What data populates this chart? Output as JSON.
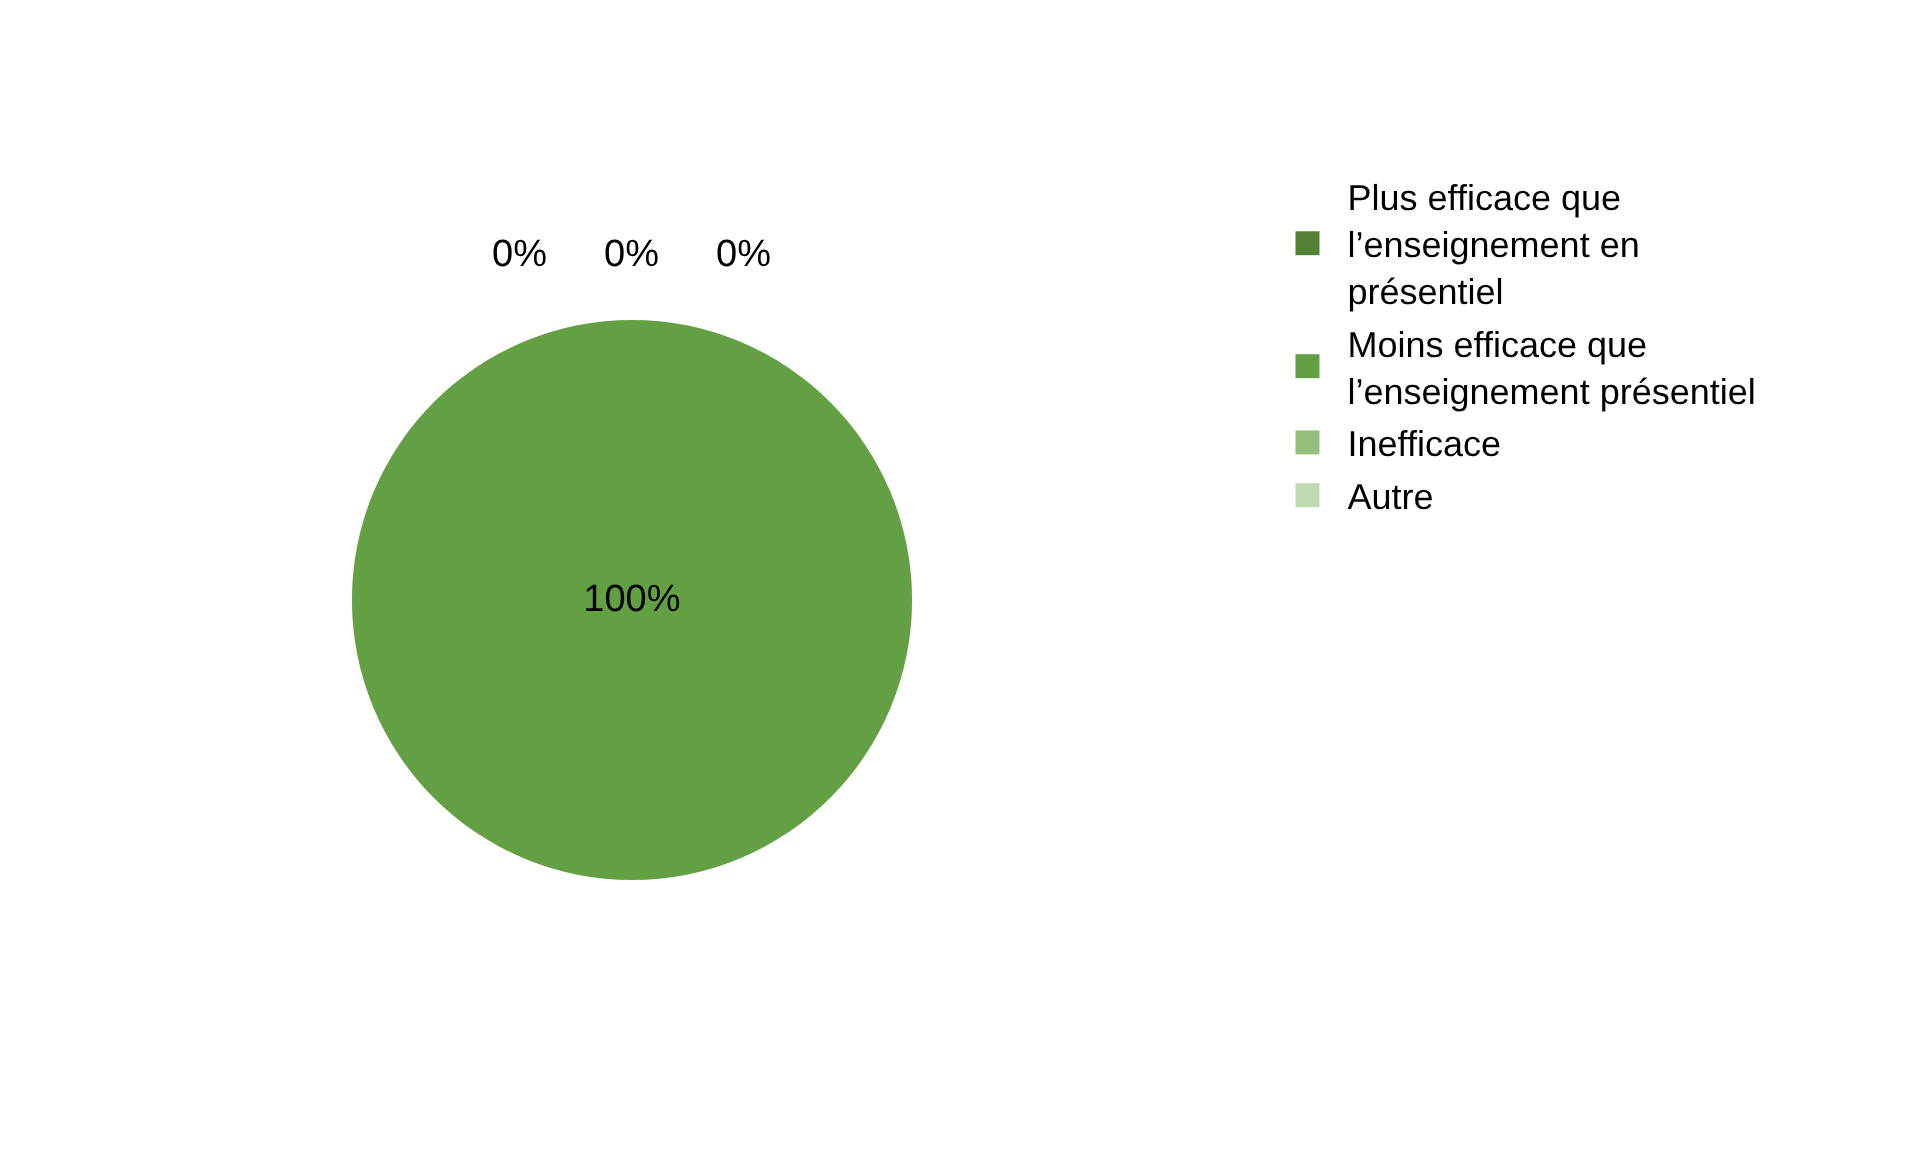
{
  "chart_data": {
    "type": "pie",
    "categories": [
      "Plus efficace que l’enseignement en présentiel",
      "Moins efficace que l’enseignement présentiel",
      "Inefficace",
      "Autre"
    ],
    "values": [
      0,
      100,
      0,
      0
    ],
    "colors": [
      "#548235",
      "#63a043",
      "#93bf7a",
      "#c0d9b0"
    ],
    "value_labels": [
      "0%",
      "100%",
      "0%",
      "0%"
    ],
    "legend": "right"
  }
}
